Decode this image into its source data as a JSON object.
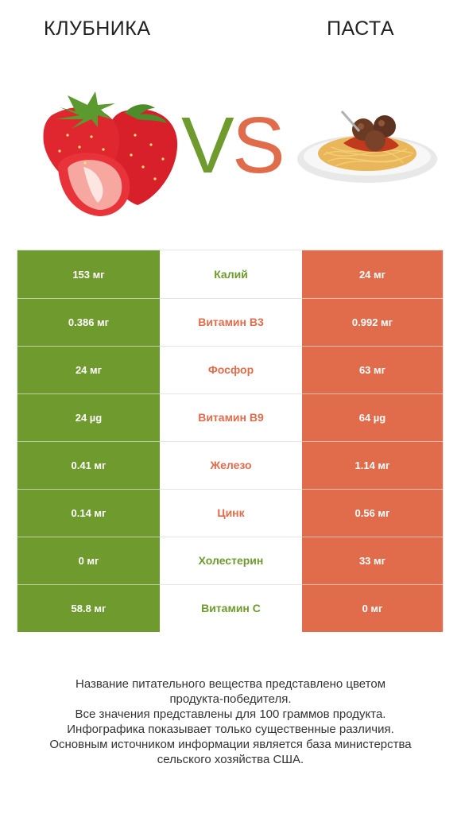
{
  "header": {
    "left_title": "КЛУБНИКА",
    "right_title": "ПАСТА",
    "vs_v": "V",
    "vs_s": "S"
  },
  "colors": {
    "winner_left": "#6e9a2e",
    "winner_right": "#e06c4c"
  },
  "illustrations": {
    "left": "strawberry-image",
    "right": "spaghetti-plate-image"
  },
  "rows": [
    {
      "left": "153 мг",
      "nutrient": "Калий",
      "right": "24 мг",
      "winner": "left"
    },
    {
      "left": "0.386 мг",
      "nutrient": "Витамин B3",
      "right": "0.992 мг",
      "winner": "right"
    },
    {
      "left": "24 мг",
      "nutrient": "Фосфор",
      "right": "63 мг",
      "winner": "right"
    },
    {
      "left": "24 µg",
      "nutrient": "Витамин B9",
      "right": "64 µg",
      "winner": "right"
    },
    {
      "left": "0.41 мг",
      "nutrient": "Железо",
      "right": "1.14 мг",
      "winner": "right"
    },
    {
      "left": "0.14 мг",
      "nutrient": "Цинк",
      "right": "0.56 мг",
      "winner": "right"
    },
    {
      "left": "0 мг",
      "nutrient": "Холестерин",
      "right": "33 мг",
      "winner": "left"
    },
    {
      "left": "58.8 мг",
      "nutrient": "Витамин C",
      "right": "0 мг",
      "winner": "left"
    }
  ],
  "footnote": [
    "Название питательного вещества представлено цветом",
    "продукта-победителя.",
    "Все значения представлены для 100 граммов продукта.",
    "Инфографика показывает только существенные различия.",
    "Основным источником информации является база министерства",
    "сельского хозяйства США."
  ]
}
